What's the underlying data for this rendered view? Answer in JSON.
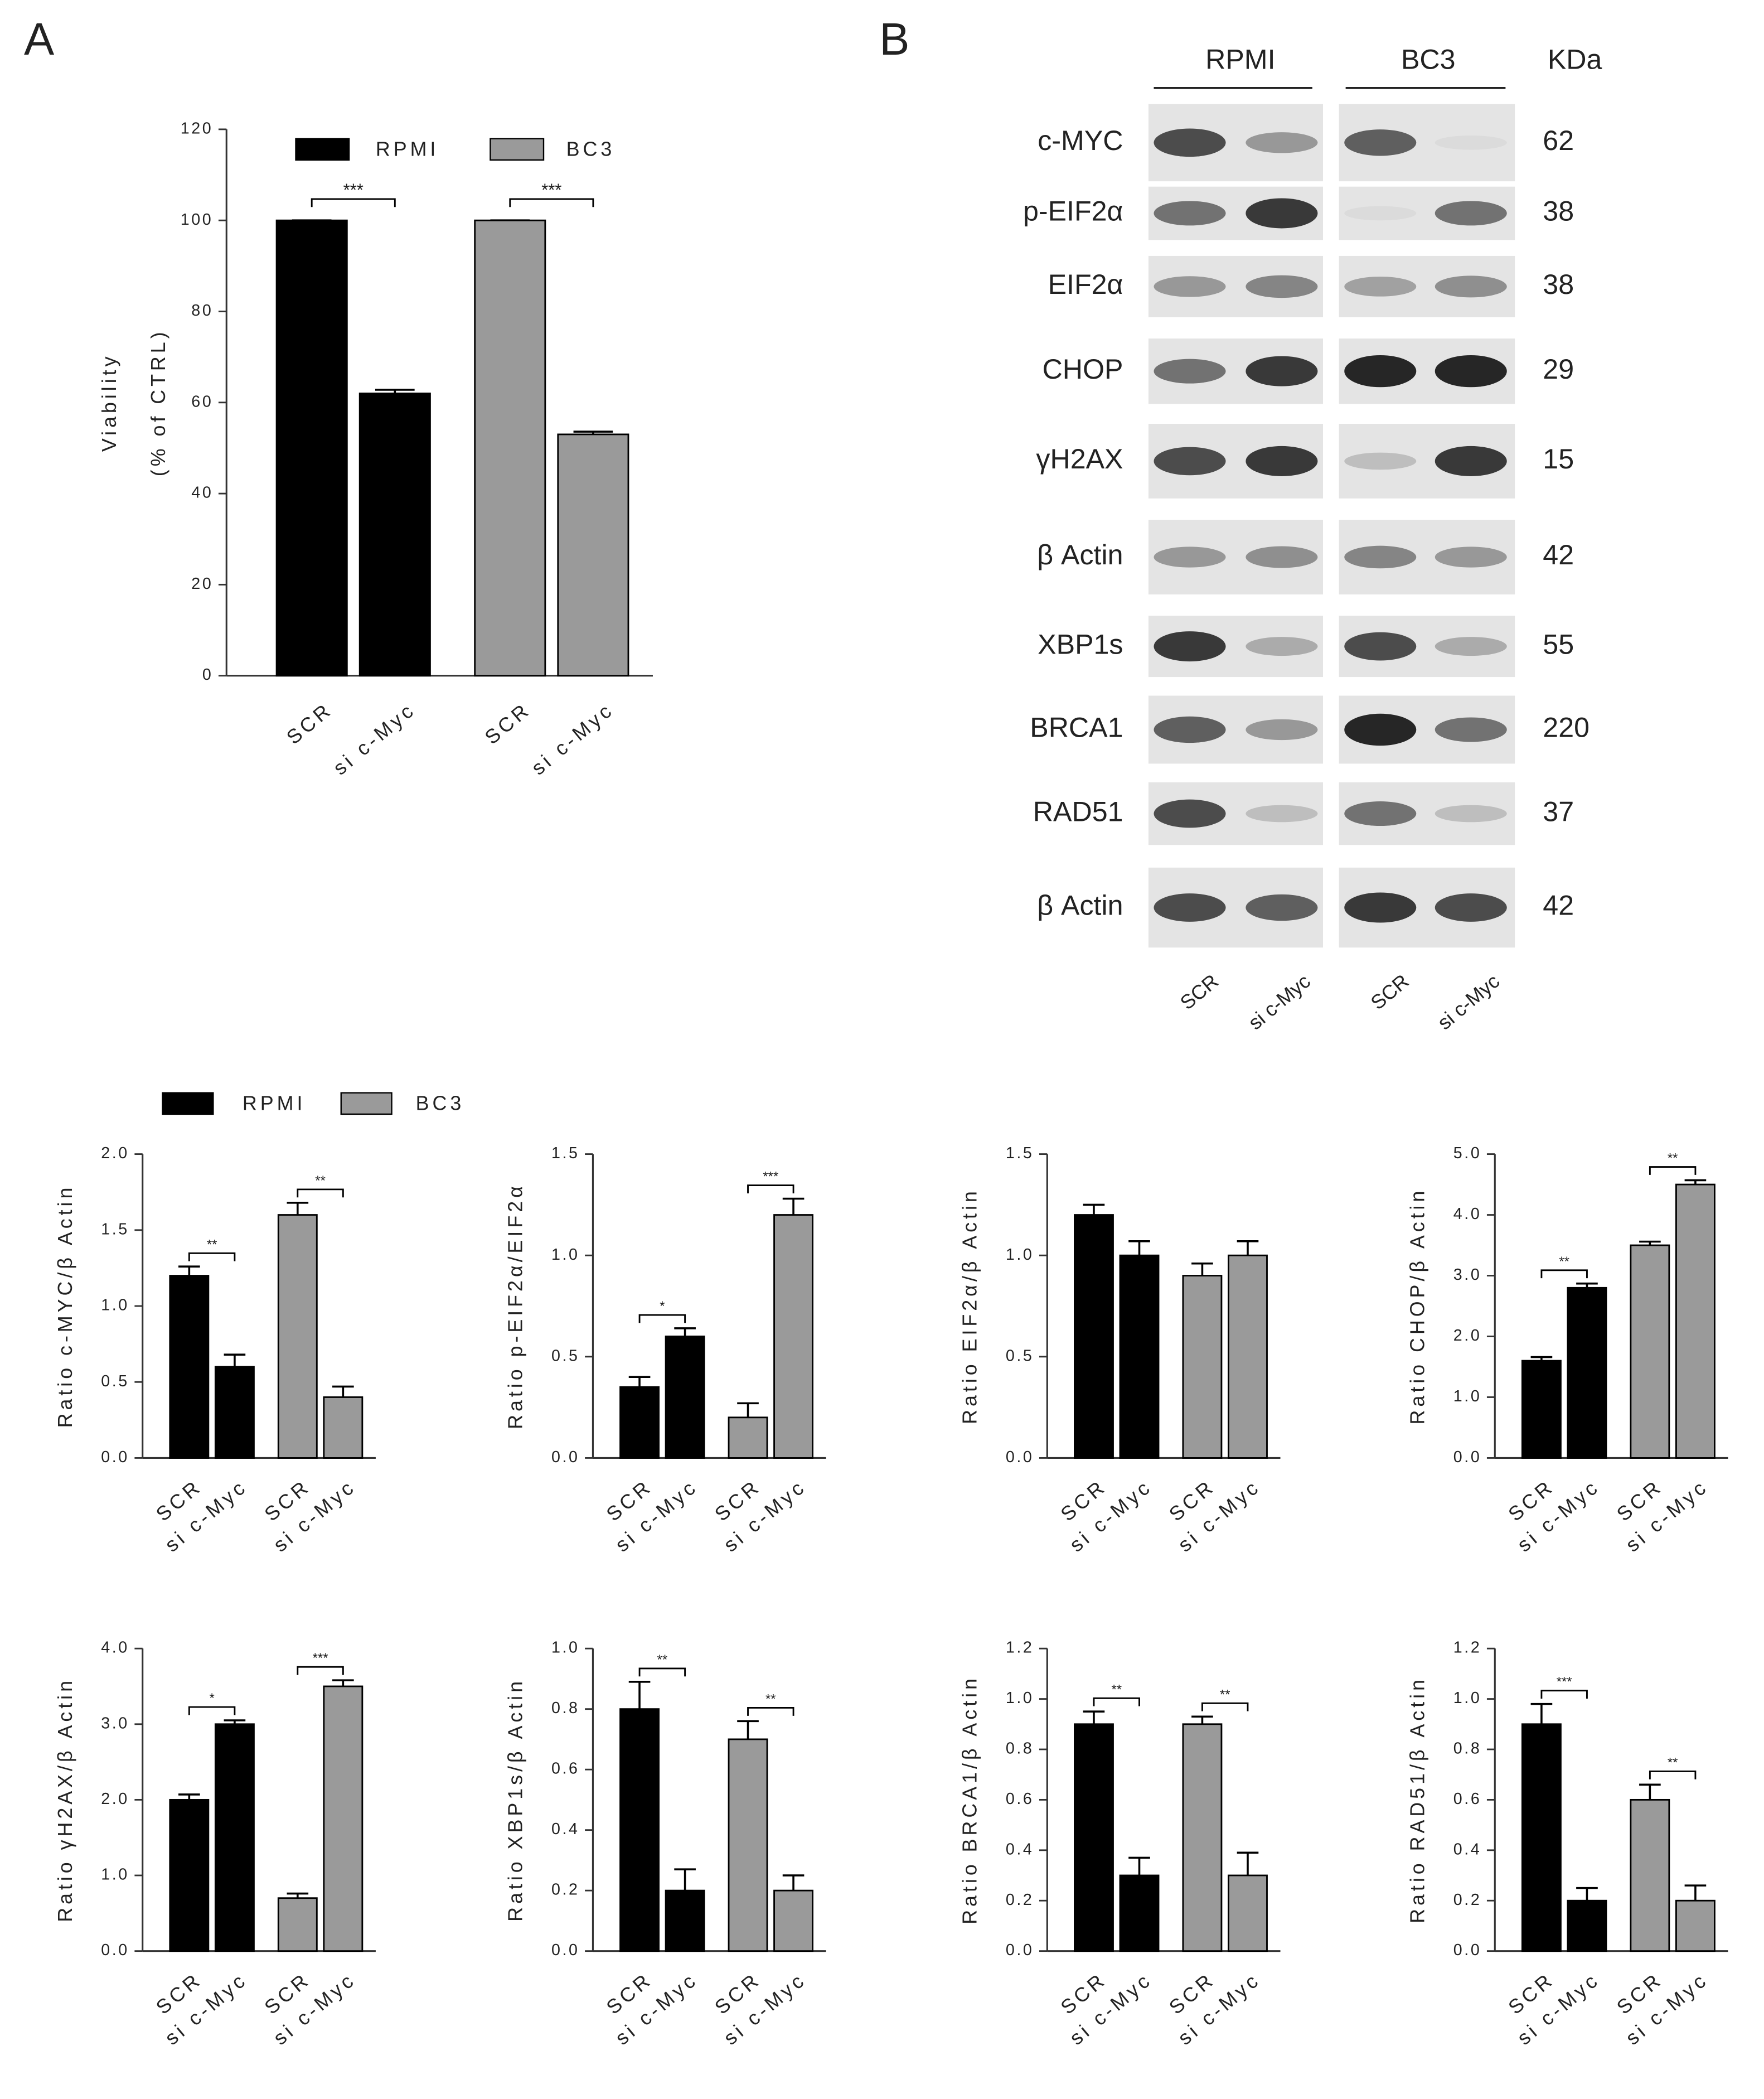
{
  "panel_labels": [
    "A",
    "B"
  ],
  "chart_data": [
    {
      "type": "bar",
      "ylabel": [
        "Viability",
        "(% of CTRL)"
      ],
      "legend": [
        {
          "name": "RPMI",
          "color": "#000000"
        },
        {
          "name": "BC3",
          "color": "#9a9a9a"
        }
      ],
      "categories": [
        "SCR",
        "si c-Myc",
        "SCR",
        "si c-Myc"
      ],
      "values": [
        100,
        62,
        100,
        53
      ],
      "errors": [
        0,
        0.8,
        0,
        0.6
      ],
      "colors": [
        "#000000",
        "#000000",
        "#9a9a9a",
        "#9a9a9a"
      ],
      "ylim": [
        0,
        120
      ],
      "yticks": [
        0,
        20,
        40,
        60,
        80,
        100,
        120
      ],
      "annotations": [
        {
          "text": "***",
          "bars": [
            0,
            1
          ]
        },
        {
          "text": "***",
          "bars": [
            2,
            3
          ]
        }
      ]
    },
    {
      "type": "bar",
      "ylabel": "Ratio c-MYC/β Actin",
      "legend": [
        {
          "name": "RPMI",
          "color": "#000000"
        },
        {
          "name": "BC3",
          "color": "#9a9a9a"
        }
      ],
      "categories": [
        "SCR",
        "si c-Myc",
        "SCR",
        "si c-Myc"
      ],
      "values": [
        1.2,
        0.6,
        1.6,
        0.4
      ],
      "errors": [
        0.06,
        0.08,
        0.08,
        0.07
      ],
      "colors": [
        "#000000",
        "#000000",
        "#9a9a9a",
        "#9a9a9a"
      ],
      "ylim": [
        0,
        2
      ],
      "yticks": [
        {
          "value": 0,
          "label": "0.0"
        },
        0.5,
        {
          "value": 1,
          "label": "1.0"
        },
        1.5,
        {
          "value": 2,
          "label": "2.0"
        }
      ],
      "annotations": [
        {
          "text": "**",
          "bars": [
            0,
            1
          ]
        },
        {
          "text": "**",
          "bars": [
            2,
            3
          ]
        }
      ]
    },
    {
      "type": "bar",
      "ylabel": "Ratio p-EIF2α/EIF2α",
      "categories": [
        "SCR",
        "si c-Myc",
        "SCR",
        "si c-Myc"
      ],
      "values": [
        0.35,
        0.6,
        0.2,
        1.2
      ],
      "errors": [
        0.05,
        0.04,
        0.07,
        0.08
      ],
      "colors": [
        "#000000",
        "#000000",
        "#9a9a9a",
        "#9a9a9a"
      ],
      "ylim": [
        0,
        1.5
      ],
      "yticks": [
        {
          "value": 0,
          "label": "0.0"
        },
        0.5,
        {
          "value": 1,
          "label": "1.0"
        },
        1.5
      ],
      "annotations": [
        {
          "text": "*",
          "bars": [
            0,
            1
          ]
        },
        {
          "text": "***",
          "bars": [
            2,
            3
          ]
        }
      ]
    },
    {
      "type": "bar",
      "ylabel": "Ratio EIF2α/β Actin",
      "categories": [
        "SCR",
        "si c-Myc",
        "SCR",
        "si c-Myc"
      ],
      "values": [
        1.2,
        1.0,
        0.9,
        1.0
      ],
      "errors": [
        0.05,
        0.07,
        0.06,
        0.07
      ],
      "colors": [
        "#000000",
        "#000000",
        "#9a9a9a",
        "#9a9a9a"
      ],
      "ylim": [
        0,
        1.5
      ],
      "yticks": [
        {
          "value": 0,
          "label": "0.0"
        },
        0.5,
        {
          "value": 1,
          "label": "1.0"
        },
        1.5
      ],
      "annotations": []
    },
    {
      "type": "bar",
      "ylabel": "Ratio CHOP/β Actin",
      "categories": [
        "SCR",
        "si c-Myc",
        "SCR",
        "si c-Myc"
      ],
      "values": [
        1.6,
        2.8,
        3.5,
        4.5
      ],
      "errors": [
        0.06,
        0.07,
        0.06,
        0.07
      ],
      "colors": [
        "#000000",
        "#000000",
        "#9a9a9a",
        "#9a9a9a"
      ],
      "ylim": [
        0,
        5
      ],
      "yticks": [
        {
          "value": 0,
          "label": "0.0"
        },
        {
          "value": 1,
          "label": "1.0"
        },
        {
          "value": 2,
          "label": "2.0"
        },
        {
          "value": 3,
          "label": "3.0"
        },
        {
          "value": 4,
          "label": "4.0"
        },
        {
          "value": 5,
          "label": "5.0"
        }
      ],
      "annotations": [
        {
          "text": "**",
          "bars": [
            0,
            1
          ]
        },
        {
          "text": "**",
          "bars": [
            2,
            3
          ]
        }
      ]
    },
    {
      "type": "bar",
      "ylabel": "Ratio γH2AX/β Actin",
      "categories": [
        "SCR",
        "si c-Myc",
        "SCR",
        "si c-Myc"
      ],
      "values": [
        2.0,
        3.0,
        0.7,
        3.5
      ],
      "errors": [
        0.07,
        0.05,
        0.06,
        0.08
      ],
      "colors": [
        "#000000",
        "#000000",
        "#9a9a9a",
        "#9a9a9a"
      ],
      "ylim": [
        0,
        4
      ],
      "yticks": [
        {
          "value": 0,
          "label": "0.0"
        },
        {
          "value": 1,
          "label": "1.0"
        },
        {
          "value": 2,
          "label": "2.0"
        },
        {
          "value": 3,
          "label": "3.0"
        },
        {
          "value": 4,
          "label": "4.0"
        }
      ],
      "annotations": [
        {
          "text": "*",
          "bars": [
            0,
            1
          ]
        },
        {
          "text": "***",
          "bars": [
            2,
            3
          ]
        }
      ]
    },
    {
      "type": "bar",
      "ylabel": "Ratio XBP1s/β Actin",
      "categories": [
        "SCR",
        "si c-Myc",
        "SCR",
        "si c-Myc"
      ],
      "values": [
        0.8,
        0.2,
        0.7,
        0.2
      ],
      "errors": [
        0.09,
        0.07,
        0.06,
        0.05
      ],
      "colors": [
        "#000000",
        "#000000",
        "#9a9a9a",
        "#9a9a9a"
      ],
      "ylim": [
        0,
        1
      ],
      "yticks": [
        {
          "value": 0,
          "label": "0.0"
        },
        0.2,
        0.4,
        0.6,
        0.8,
        {
          "value": 1,
          "label": "1.0"
        }
      ],
      "annotations": [
        {
          "text": "**",
          "bars": [
            0,
            1
          ]
        },
        {
          "text": "**",
          "bars": [
            2,
            3
          ]
        }
      ]
    },
    {
      "type": "bar",
      "ylabel": "Ratio BRCA1/β Actin",
      "categories": [
        "SCR",
        "si c-Myc",
        "SCR",
        "si c-Myc"
      ],
      "values": [
        0.9,
        0.3,
        0.9,
        0.3
      ],
      "errors": [
        0.05,
        0.07,
        0.03,
        0.09
      ],
      "colors": [
        "#000000",
        "#000000",
        "#9a9a9a",
        "#9a9a9a"
      ],
      "ylim": [
        0,
        1.2
      ],
      "yticks": [
        {
          "value": 0,
          "label": "0.0"
        },
        0.2,
        0.4,
        0.6,
        0.8,
        {
          "value": 1,
          "label": "1.0"
        },
        1.2
      ],
      "annotations": [
        {
          "text": "**",
          "bars": [
            0,
            1
          ]
        },
        {
          "text": "**",
          "bars": [
            2,
            3
          ]
        }
      ]
    },
    {
      "type": "bar",
      "ylabel": "Ratio RAD51/β Actin",
      "categories": [
        "SCR",
        "si c-Myc",
        "SCR",
        "si c-Myc"
      ],
      "values": [
        0.9,
        0.2,
        0.6,
        0.2
      ],
      "errors": [
        0.08,
        0.05,
        0.06,
        0.06
      ],
      "colors": [
        "#000000",
        "#000000",
        "#9a9a9a",
        "#9a9a9a"
      ],
      "ylim": [
        0,
        1.2
      ],
      "yticks": [
        {
          "value": 0,
          "label": "0.0"
        },
        0.2,
        0.4,
        0.6,
        0.8,
        {
          "value": 1,
          "label": "1.0"
        },
        1.2
      ],
      "annotations": [
        {
          "text": "***",
          "bars": [
            0,
            1
          ]
        },
        {
          "text": "**",
          "bars": [
            2,
            3
          ]
        }
      ]
    }
  ],
  "blot": {
    "columns": [
      "RPMI",
      "BC3"
    ],
    "unit": "KDa",
    "rows": [
      {
        "label": "c-MYC",
        "kda": 62
      },
      {
        "label": "p-EIF2α",
        "kda": 38
      },
      {
        "label": "EIF2α",
        "kda": 38
      },
      {
        "label": "CHOP",
        "kda": 29
      },
      {
        "label": "γH2AX",
        "kda": 15
      },
      {
        "label": "β Actin",
        "kda": 42
      },
      {
        "label": "XBP1s",
        "kda": 55
      },
      {
        "label": "BRCA1",
        "kda": 220
      },
      {
        "label": "RAD51",
        "kda": 37
      },
      {
        "label": "β Actin",
        "kda": 42
      }
    ],
    "lanes": [
      "SCR",
      "si c-Myc",
      "SCR",
      "si c-Myc"
    ]
  }
}
